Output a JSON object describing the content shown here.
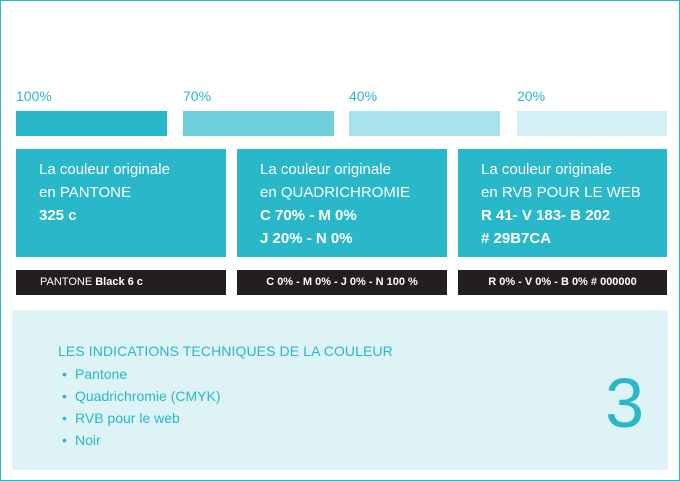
{
  "colors": {
    "primary": "#29B7CA",
    "tint70": "#70D0DC",
    "tint40": "#A9E2EA",
    "tint20": "#D4F0F4",
    "black": "#231F20",
    "panel": "#DDF3F6"
  },
  "tints": [
    {
      "label": "100%",
      "fill": 1.0
    },
    {
      "label": "70%",
      "fill": 0.7
    },
    {
      "label": "40%",
      "fill": 0.4
    },
    {
      "label": "20%",
      "fill": 0.2
    }
  ],
  "cards": [
    {
      "line1": "La couleur originale",
      "line2": "en PANTONE",
      "line3": "325 c",
      "line4": ""
    },
    {
      "line1": "La couleur originale",
      "line2": "en QUADRICHROMIE",
      "line3": "C 70% - M 0%",
      "line4": "J 20% - N 0%"
    },
    {
      "line1": "La couleur originale",
      "line2": "en RVB POUR LE WEB",
      "line3": "R 41- V 183- B 202",
      "line4": "# 29B7CA"
    }
  ],
  "black_bars": [
    {
      "prefix": "PANTONE ",
      "bold": "Black 6 c"
    },
    {
      "prefix": "",
      "bold": "C 0% - M 0% - J 0% - N 100 %"
    },
    {
      "prefix": "",
      "bold": "R 0% - V 0% - B 0%  # 000000"
    }
  ],
  "panel": {
    "title": "LES INDICATIONS TECHNIQUES DE LA COULEUR",
    "items": [
      "Pantone",
      "Quadrichromie (CMYK)",
      "RVB pour le web",
      "Noir"
    ],
    "page_number": "3"
  }
}
